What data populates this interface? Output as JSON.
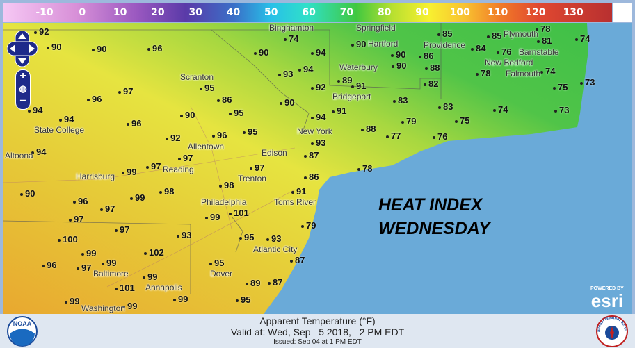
{
  "legend": {
    "ticks": [
      "-10",
      "0",
      "10",
      "20",
      "30",
      "40",
      "50",
      "60",
      "70",
      "80",
      "90",
      "100",
      "110",
      "120",
      "130"
    ]
  },
  "colors": {
    "ocean": "#6aaad8",
    "land_warm": "#e8b030",
    "land_mid": "#e8e440",
    "land_cool": "#50c448",
    "footer": "#dfe7f1"
  },
  "map": {
    "title_line1": "HEAT INDEX",
    "title_line2": "WEDNESDAY",
    "values": [
      "92",
      "90",
      "90",
      "96",
      "74",
      "90",
      "94",
      "90",
      "90",
      "86",
      "85",
      "85",
      "78",
      "74",
      "84",
      "81",
      "76",
      "74",
      "90",
      "88",
      "93",
      "94",
      "89",
      "92",
      "95",
      "97",
      "96",
      "86",
      "90",
      "82",
      "78",
      "75",
      "73",
      "91",
      "83",
      "83",
      "74",
      "73",
      "94",
      "96",
      "90",
      "95",
      "94",
      "91",
      "79",
      "75",
      "94",
      "88",
      "93",
      "92",
      "96",
      "95",
      "77",
      "76",
      "94",
      "87",
      "97",
      "97",
      "97",
      "78",
      "86",
      "99",
      "98",
      "98",
      "90",
      "99",
      "96",
      "97",
      "101",
      "91",
      "97",
      "99",
      "79",
      "97",
      "93",
      "95",
      "93",
      "100",
      "99",
      "102",
      "87",
      "96",
      "97",
      "99",
      "95",
      "99",
      "89",
      "87",
      "101",
      "99",
      "99",
      "99",
      "95"
    ],
    "cities": [
      "Binghamton",
      "Springfield",
      "Hartford",
      "Waterbury",
      "Bridgeport",
      "Providence",
      "Plymouth",
      "Barnstable",
      "New Bedford",
      "Falmouth",
      "Scranton",
      "State College",
      "Altoona",
      "Allentown",
      "New York",
      "Edison",
      "Reading",
      "Harrisburg",
      "Trenton",
      "Philadelphia",
      "Toms River",
      "Atlantic City",
      "Baltimore",
      "Annapolis",
      "Washington",
      "Dover"
    ]
  },
  "controls": {
    "zoom_in": "+",
    "zoom_out": "−",
    "pan": "pan-arrows-icon",
    "globe": "globe-icon"
  },
  "branding": {
    "powered_by": "POWERED BY",
    "esri": "esri",
    "noaa": "NOAA",
    "nws": "National Weather Service"
  },
  "footer": {
    "line1": "Apparent Temperature (°F)",
    "line2": "Valid at: Wed, Sep   5 2018,   2 PM EDT",
    "line3": "Issued: Sep 04 at 1 PM EDT"
  }
}
